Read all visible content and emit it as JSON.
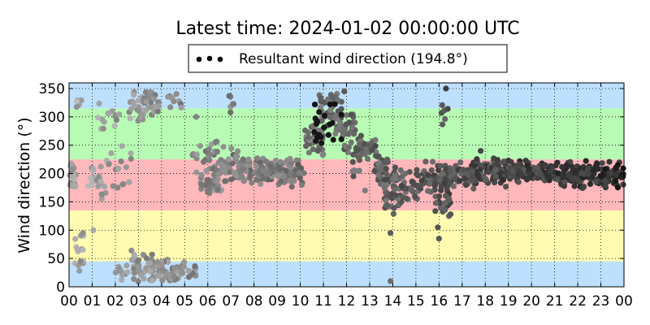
{
  "chart_data": {
    "type": "scatter",
    "title": "Latest time: 2024-01-02 00:00:00 UTC",
    "ylabel": "Wind direction (°)",
    "xlabel": "",
    "legend": {
      "label": "Resultant wind direction (194.8°)",
      "placement": "top-center"
    },
    "x_ticks": [
      "00",
      "01",
      "02",
      "03",
      "04",
      "05",
      "06",
      "07",
      "08",
      "09",
      "10",
      "11",
      "12",
      "13",
      "14",
      "15",
      "16",
      "17",
      "18",
      "19",
      "20",
      "21",
      "22",
      "23",
      "00"
    ],
    "x_range_hours": [
      0,
      24
    ],
    "y_ticks": [
      0,
      50,
      100,
      150,
      200,
      250,
      300,
      350
    ],
    "ylim": [
      0,
      360
    ],
    "grid": true,
    "grid_style": "dotted",
    "bands": [
      {
        "from": 0,
        "to": 45,
        "color": "#bde0fe"
      },
      {
        "from": 45,
        "to": 135,
        "color": "#fffbb0"
      },
      {
        "from": 135,
        "to": 225,
        "color": "#ffb8bc"
      },
      {
        "from": 225,
        "to": 315,
        "color": "#b8fbb4"
      },
      {
        "from": 315,
        "to": 360,
        "color": "#bde0fe"
      }
    ],
    "point_shade": "older points lighter gray, newer points darker",
    "clusters": [
      {
        "x": [
          0.0,
          0.3
        ],
        "y": [
          155,
          225
        ],
        "n": 24
      },
      {
        "x": [
          0.2,
          0.8
        ],
        "y": [
          5,
          110
        ],
        "n": 14
      },
      {
        "x": [
          0.3,
          0.6
        ],
        "y": [
          315,
          335
        ],
        "n": 6
      },
      {
        "x": [
          0.8,
          1.6
        ],
        "y": [
          150,
          220
        ],
        "n": 22
      },
      {
        "x": [
          1.2,
          2.2
        ],
        "y": [
          270,
          330
        ],
        "n": 14
      },
      {
        "x": [
          1.6,
          2.7
        ],
        "y": [
          160,
          260
        ],
        "n": 16
      },
      {
        "x": [
          2.0,
          3.0
        ],
        "y": [
          5,
          75
        ],
        "n": 22
      },
      {
        "x": [
          2.6,
          3.3
        ],
        "y": [
          280,
          355
        ],
        "n": 26
      },
      {
        "x": [
          2.8,
          3.6
        ],
        "y": [
          5,
          60
        ],
        "n": 36
      },
      {
        "x": [
          3.2,
          3.9
        ],
        "y": [
          300,
          355
        ],
        "n": 28
      },
      {
        "x": [
          3.5,
          4.3
        ],
        "y": [
          5,
          55
        ],
        "n": 40
      },
      {
        "x": [
          4.2,
          4.9
        ],
        "y": [
          310,
          345
        ],
        "n": 10
      },
      {
        "x": [
          4.3,
          4.9
        ],
        "y": [
          5,
          40
        ],
        "n": 20
      },
      {
        "x": [
          4.8,
          5.5
        ],
        "y": [
          15,
          45
        ],
        "n": 16
      },
      {
        "x": [
          5.3,
          6.5
        ],
        "y": [
          200,
          270
        ],
        "n": 24
      },
      {
        "x": [
          5.6,
          6.6
        ],
        "y": [
          150,
          215
        ],
        "n": 34
      },
      {
        "x": [
          6.3,
          7.3
        ],
        "y": [
          175,
          260
        ],
        "n": 32
      },
      {
        "x": [
          6.9,
          7.5
        ],
        "y": [
          300,
          345
        ],
        "n": 6
      },
      {
        "x": [
          7.2,
          9.3
        ],
        "y": [
          180,
          230
        ],
        "n": 110
      },
      {
        "x": [
          9.0,
          10.2
        ],
        "y": [
          175,
          230
        ],
        "n": 52
      },
      {
        "x": [
          10.2,
          11.0
        ],
        "y": [
          225,
          290
        ],
        "n": 44
      },
      {
        "x": [
          10.8,
          11.8
        ],
        "y": [
          260,
          350
        ],
        "n": 40
      },
      {
        "x": [
          11.5,
          12.4
        ],
        "y": [
          255,
          310
        ],
        "n": 36
      },
      {
        "x": [
          11.9,
          12.6
        ],
        "y": [
          190,
          265
        ],
        "n": 18
      },
      {
        "x": [
          12.4,
          13.3
        ],
        "y": [
          215,
          270
        ],
        "n": 42
      },
      {
        "x": [
          13.2,
          13.8
        ],
        "y": [
          175,
          240
        ],
        "n": 30
      },
      {
        "x": [
          13.6,
          14.4
        ],
        "y": [
          120,
          210
        ],
        "n": 36
      },
      {
        "x": [
          14.0,
          15.4
        ],
        "y": [
          140,
          215
        ],
        "n": 44
      },
      {
        "x": [
          15.2,
          16.2
        ],
        "y": [
          160,
          225
        ],
        "n": 40
      },
      {
        "x": [
          15.8,
          16.5
        ],
        "y": [
          110,
          190
        ],
        "n": 26
      },
      {
        "x": [
          16.1,
          16.4
        ],
        "y": [
          270,
          350
        ],
        "n": 6
      },
      {
        "x": [
          16.2,
          17.6
        ],
        "y": [
          170,
          225
        ],
        "n": 66
      },
      {
        "x": [
          17.4,
          19.0
        ],
        "y": [
          175,
          230
        ],
        "n": 90
      },
      {
        "x": [
          19.0,
          21.0
        ],
        "y": [
          180,
          225
        ],
        "n": 120
      },
      {
        "x": [
          21.0,
          22.3
        ],
        "y": [
          170,
          225
        ],
        "n": 80
      },
      {
        "x": [
          22.2,
          24.0
        ],
        "y": [
          170,
          225
        ],
        "n": 110
      }
    ],
    "outliers": [
      {
        "x": 0.5,
        "y": 45
      },
      {
        "x": 0.6,
        "y": 95
      },
      {
        "x": 1.05,
        "y": 100
      },
      {
        "x": 2.1,
        "y": 175
      },
      {
        "x": 5.5,
        "y": 300
      },
      {
        "x": 7.15,
        "y": 200
      },
      {
        "x": 11.9,
        "y": 345
      },
      {
        "x": 12.3,
        "y": 195
      },
      {
        "x": 12.8,
        "y": 170
      },
      {
        "x": 13.9,
        "y": 95
      },
      {
        "x": 13.9,
        "y": 10
      },
      {
        "x": 16.0,
        "y": 85
      },
      {
        "x": 15.95,
        "y": 105
      },
      {
        "x": 16.3,
        "y": 350
      },
      {
        "x": 17.8,
        "y": 240
      }
    ]
  }
}
